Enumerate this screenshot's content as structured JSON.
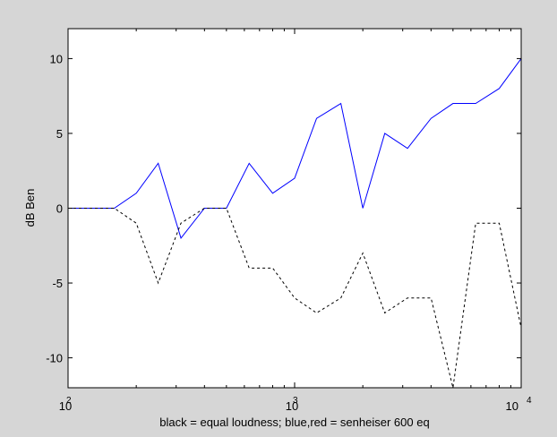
{
  "figure": {
    "background": "#d6d6d6",
    "axes_background": "#ffffff"
  },
  "chart_data": {
    "type": "line",
    "title": "",
    "xlabel": "black = equal loudness; blue,red = senheiser 600 eq",
    "ylabel": "dB Ben",
    "xscale": "log",
    "xlim": [
      100,
      10000
    ],
    "ylim": [
      -12,
      12
    ],
    "grid": false,
    "legend": "none",
    "x_tick_labels": [
      {
        "base": "10",
        "exp": "2",
        "value": 100
      },
      {
        "base": "10",
        "exp": "3",
        "value": 1000
      },
      {
        "base": "10",
        "exp": "4",
        "value": 10000
      }
    ],
    "y_ticks": [
      -10,
      -5,
      0,
      5,
      10
    ],
    "y_tick_labels": [
      "-10",
      "-5",
      "0",
      "5",
      "10"
    ],
    "x": [
      100,
      125,
      160,
      200,
      250,
      315,
      400,
      500,
      630,
      800,
      1000,
      1250,
      1600,
      2000,
      2500,
      3150,
      4000,
      5000,
      6300,
      8000,
      10000
    ],
    "series": [
      {
        "color": "#0000ff",
        "style": "solid",
        "values": [
          0,
          0,
          0,
          1,
          3,
          -2,
          0,
          0,
          3,
          1,
          2,
          6,
          7,
          0,
          5,
          4,
          6,
          7,
          7,
          8,
          10
        ]
      },
      {
        "color": "#000000",
        "style": "dashed",
        "values": [
          0,
          0,
          0,
          -1,
          -5,
          -1,
          0,
          0,
          -4,
          -4,
          -6,
          -7,
          -6,
          -3,
          -7,
          -6,
          -6,
          -12,
          -1,
          -1,
          -8
        ]
      }
    ]
  }
}
